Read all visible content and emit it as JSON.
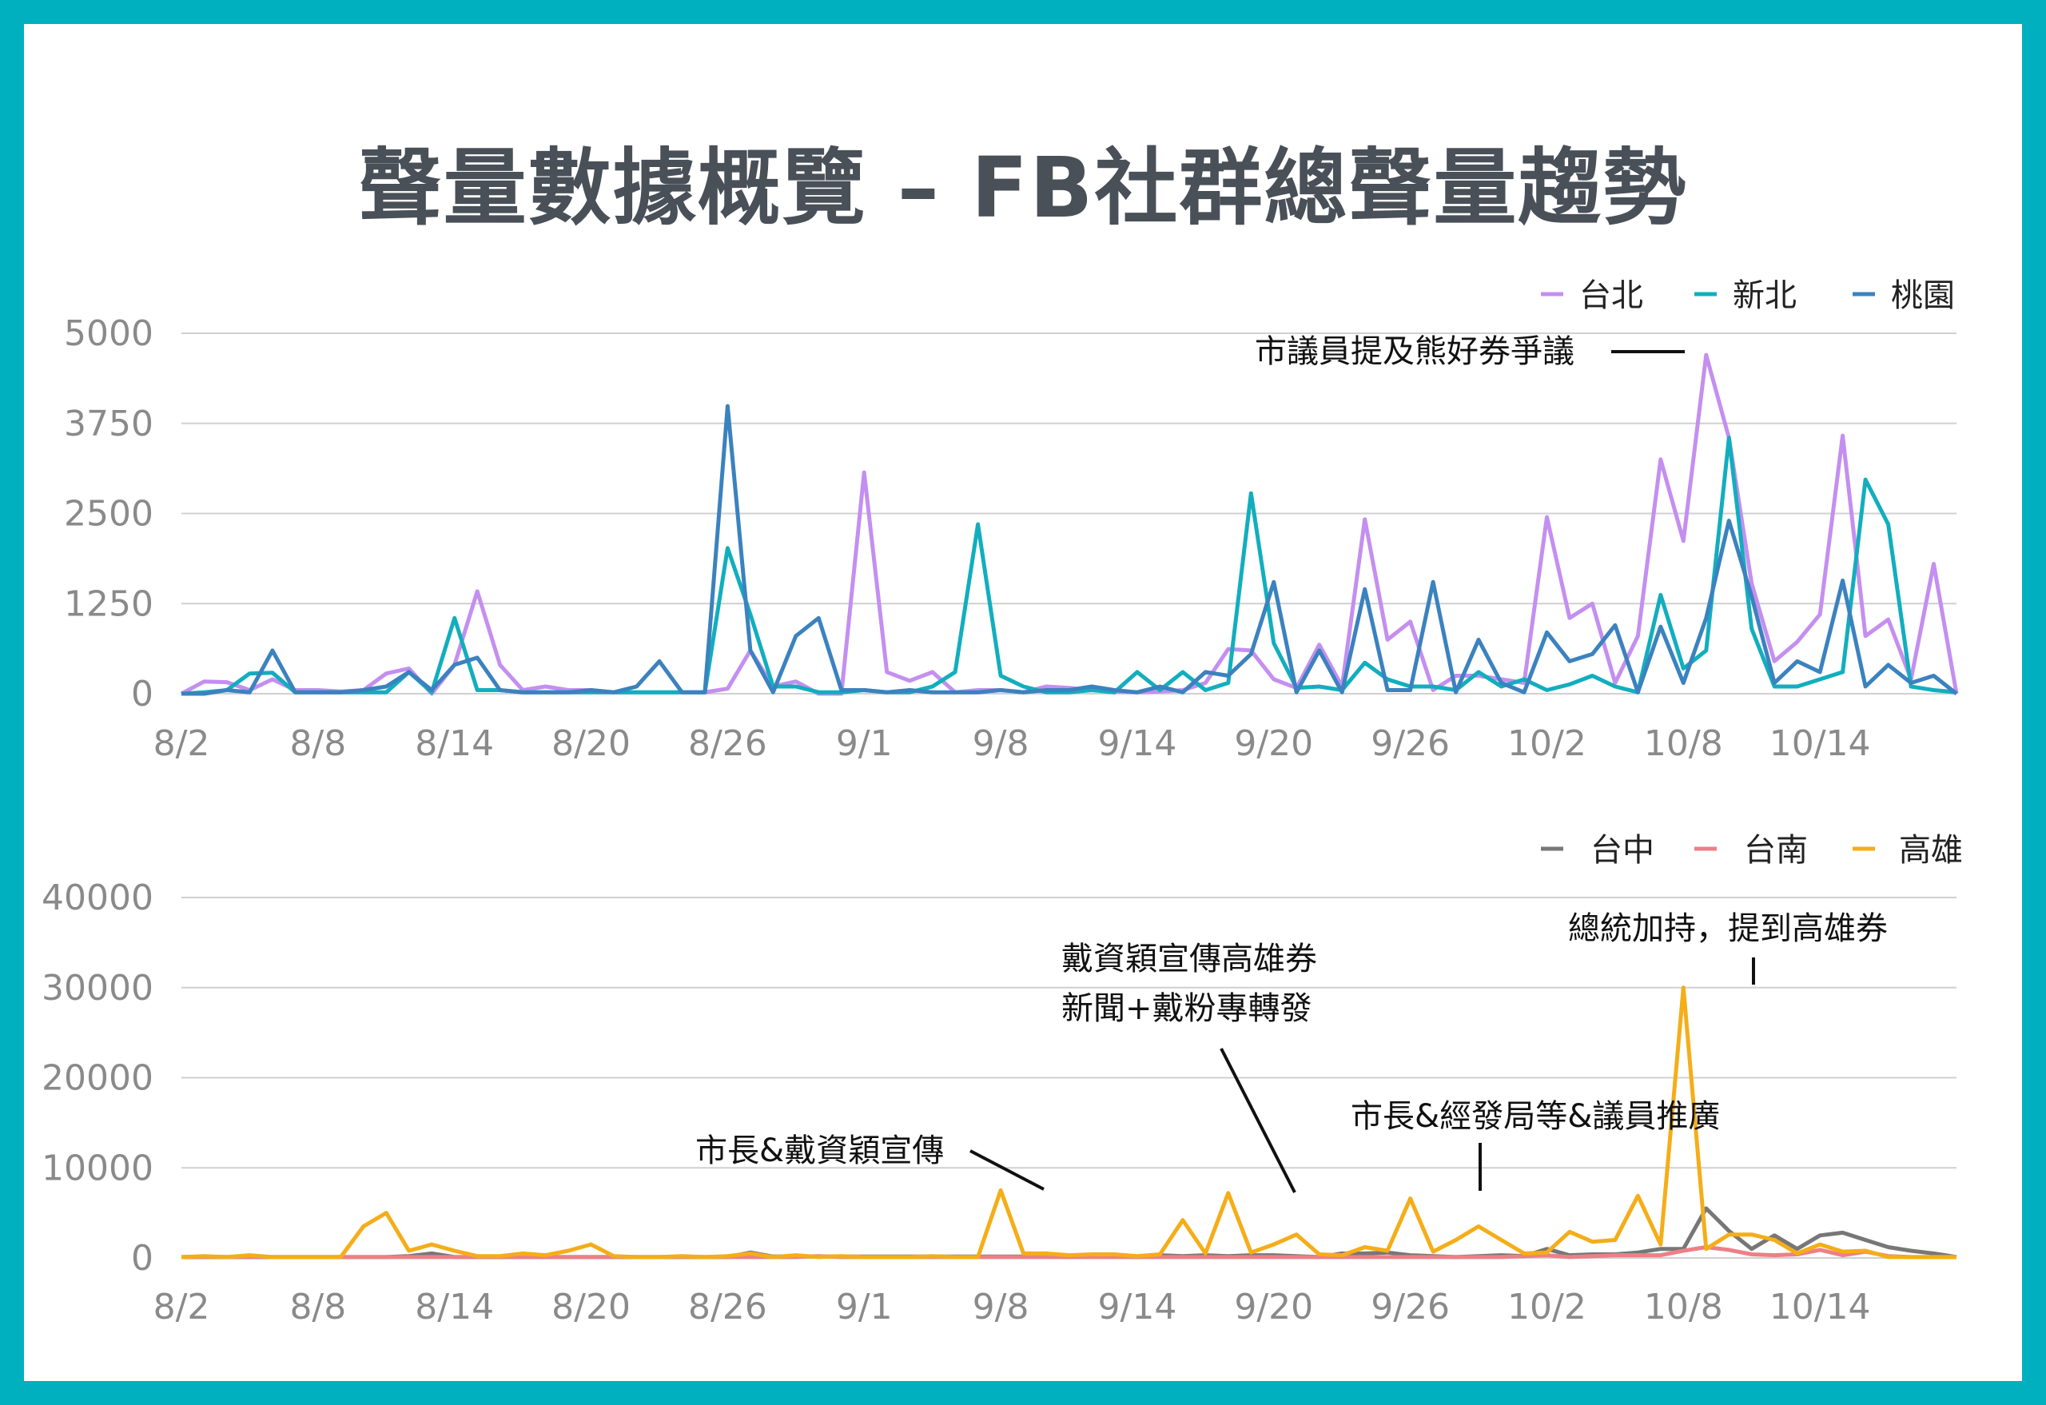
{
  "title": "聲量數據概覽 – FB社群總聲量趨勢",
  "colors": {
    "frame": "#00b0be",
    "台北": "#c48ff0",
    "新北": "#12aebe",
    "桃園": "#3b82bf",
    "台中": "#777777",
    "台南": "#ee7f86",
    "高雄": "#f5ad18"
  },
  "chart_data": [
    {
      "type": "line",
      "x_ticks": [
        "8/2",
        "8/8",
        "8/14",
        "8/20",
        "8/26",
        "9/1",
        "9/8",
        "9/14",
        "9/20",
        "9/26",
        "10/2",
        "10/8",
        "10/14"
      ],
      "x_tick_index": [
        0,
        6,
        12,
        18,
        24,
        30,
        36,
        42,
        48,
        54,
        60,
        66,
        72
      ],
      "ylim": [
        0,
        5000
      ],
      "y_ticks": [
        0,
        1250,
        2500,
        3750,
        5000
      ],
      "legend_position": "top-right",
      "series": [
        {
          "name": "台北",
          "values": [
            0,
            170,
            160,
            50,
            200,
            50,
            50,
            30,
            50,
            280,
            350,
            0,
            400,
            1420,
            400,
            50,
            100,
            50,
            50,
            20,
            20,
            20,
            20,
            20,
            70,
            600,
            100,
            170,
            0,
            0,
            3070,
            300,
            180,
            300,
            20,
            50,
            50,
            20,
            100,
            80,
            50,
            30,
            20,
            30,
            50,
            150,
            620,
            600,
            200,
            80,
            680,
            100,
            2420,
            750,
            1000,
            50,
            250,
            250,
            200,
            150,
            2450,
            1050,
            1250,
            150,
            800,
            3250,
            2120,
            4700,
            3550,
            1530,
            450,
            720,
            1100,
            3580,
            800,
            1030,
            200,
            1800,
            0
          ]
        },
        {
          "name": "新北",
          "values": [
            0,
            20,
            50,
            280,
            290,
            20,
            20,
            20,
            20,
            20,
            300,
            20,
            1050,
            50,
            50,
            20,
            20,
            20,
            20,
            20,
            20,
            20,
            20,
            20,
            2020,
            1100,
            100,
            100,
            20,
            20,
            50,
            20,
            20,
            100,
            300,
            2350,
            250,
            100,
            20,
            20,
            50,
            20,
            300,
            50,
            300,
            50,
            150,
            2780,
            700,
            80,
            100,
            50,
            430,
            200,
            100,
            100,
            50,
            300,
            100,
            200,
            50,
            130,
            250,
            100,
            20,
            1370,
            350,
            600,
            3550,
            900,
            100,
            100,
            200,
            300,
            2970,
            2350,
            100,
            50,
            20
          ]
        },
        {
          "name": "桃園",
          "values": [
            0,
            0,
            50,
            20,
            600,
            20,
            20,
            20,
            50,
            100,
            300,
            50,
            400,
            500,
            50,
            20,
            20,
            20,
            50,
            20,
            100,
            450,
            20,
            20,
            3990,
            600,
            20,
            800,
            1050,
            50,
            50,
            20,
            50,
            20,
            20,
            20,
            50,
            20,
            50,
            50,
            100,
            50,
            20,
            100,
            20,
            300,
            250,
            550,
            1550,
            20,
            600,
            20,
            1450,
            50,
            50,
            1550,
            20,
            750,
            150,
            20,
            850,
            450,
            550,
            950,
            20,
            930,
            150,
            1050,
            2400,
            1350,
            150,
            450,
            300,
            1570,
            100,
            400,
            150,
            250,
            0
          ]
        }
      ],
      "annotations": [
        {
          "text": "市議員提及熊好券爭議"
        }
      ]
    },
    {
      "type": "line",
      "x_ticks": [
        "8/2",
        "8/8",
        "8/14",
        "8/20",
        "8/26",
        "9/1",
        "9/8",
        "9/14",
        "9/20",
        "9/26",
        "10/2",
        "10/8",
        "10/14"
      ],
      "x_tick_index": [
        0,
        6,
        12,
        18,
        24,
        30,
        36,
        42,
        48,
        54,
        60,
        66,
        72
      ],
      "ylim": [
        0,
        40000
      ],
      "y_ticks": [
        0,
        10000,
        20000,
        30000,
        40000
      ],
      "legend_position": "top-right",
      "series": [
        {
          "name": "台中",
          "values": [
            100,
            100,
            100,
            100,
            100,
            100,
            100,
            100,
            100,
            100,
            200,
            500,
            100,
            100,
            100,
            100,
            100,
            100,
            100,
            100,
            100,
            100,
            100,
            100,
            100,
            600,
            150,
            200,
            150,
            150,
            150,
            150,
            150,
            150,
            150,
            150,
            150,
            150,
            150,
            150,
            150,
            300,
            100,
            300,
            200,
            300,
            200,
            300,
            300,
            200,
            100,
            500,
            500,
            600,
            300,
            200,
            100,
            200,
            300,
            200,
            1000,
            300,
            400,
            400,
            600,
            1000,
            1000,
            5500,
            3000,
            1000,
            2500,
            1000,
            2500,
            2800,
            2000,
            1200,
            800,
            500,
            100
          ]
        },
        {
          "name": "台南",
          "values": [
            100,
            100,
            100,
            100,
            100,
            100,
            100,
            100,
            100,
            100,
            100,
            100,
            100,
            100,
            100,
            100,
            100,
            100,
            100,
            100,
            100,
            100,
            100,
            100,
            100,
            100,
            100,
            100,
            200,
            100,
            100,
            100,
            100,
            100,
            100,
            100,
            100,
            100,
            100,
            100,
            100,
            100,
            100,
            100,
            100,
            100,
            100,
            100,
            100,
            100,
            100,
            100,
            100,
            100,
            100,
            100,
            100,
            100,
            100,
            200,
            300,
            100,
            200,
            300,
            300,
            300,
            800,
            1200,
            900,
            400,
            300,
            400,
            900,
            300,
            700,
            200,
            100,
            100,
            100
          ]
        },
        {
          "name": "高雄",
          "values": [
            100,
            200,
            100,
            300,
            100,
            100,
            100,
            100,
            3500,
            5000,
            800,
            1500,
            800,
            200,
            200,
            500,
            300,
            800,
            1500,
            200,
            100,
            100,
            200,
            100,
            200,
            500,
            100,
            300,
            100,
            200,
            100,
            100,
            100,
            200,
            100,
            100,
            7500,
            500,
            500,
            300,
            400,
            400,
            200,
            400,
            4200,
            500,
            7200,
            600,
            1500,
            2600,
            400,
            300,
            1200,
            800,
            6600,
            700,
            2000,
            3500,
            2000,
            500,
            600,
            2900,
            1800,
            2000,
            6900,
            1500,
            30000,
            1000,
            2600,
            2600,
            2000,
            500,
            1500,
            700,
            800,
            100,
            100,
            100,
            100
          ]
        }
      ],
      "annotations": [
        {
          "text": "市長&戴資穎宣傳"
        },
        {
          "text": "戴資穎宣傳高雄券"
        },
        {
          "text": "新聞+戴粉專轉發"
        },
        {
          "text": "市長&經發局等&議員推廣"
        },
        {
          "text": "總統加持，提到高雄券"
        }
      ]
    }
  ]
}
